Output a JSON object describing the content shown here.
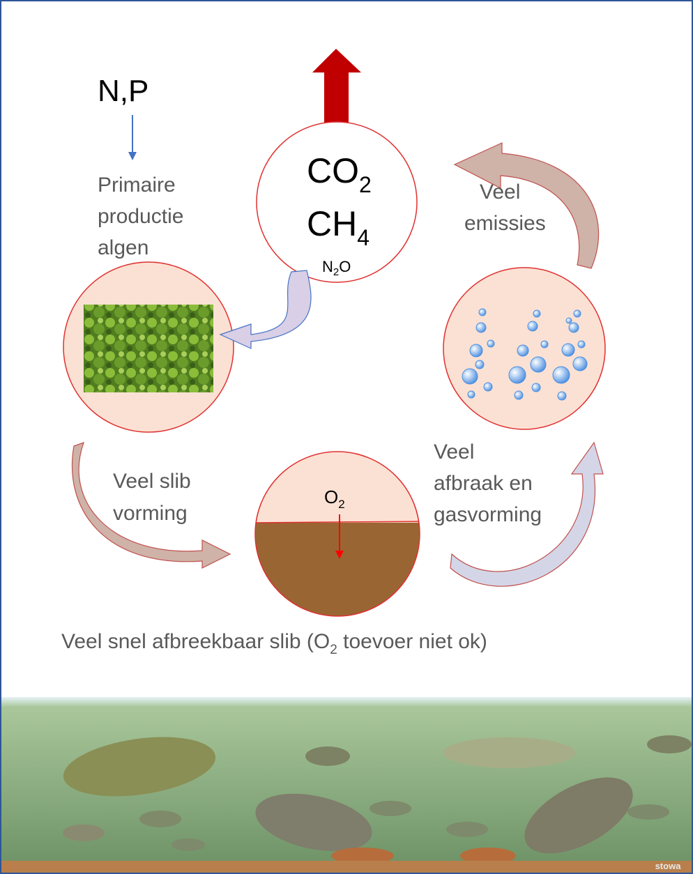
{
  "nutrients": "N,P",
  "primary": [
    "Primaire",
    "productie",
    "algen"
  ],
  "gases": {
    "co2": {
      "text": "CO",
      "sub": "2"
    },
    "ch4": {
      "text": "CH",
      "sub": "4"
    },
    "n2o": {
      "text": "N",
      "sub": "2",
      "tail": "O"
    }
  },
  "emissions": [
    "Veel",
    "emissies"
  ],
  "sludge": [
    "Veel slib",
    "vorming"
  ],
  "oxygen": {
    "text": "O",
    "sub": "2"
  },
  "decay": [
    "Veel",
    "afbraak en",
    "gasvorming"
  ],
  "caption": {
    "text": "Veel snel afbreekbaar slib (O",
    "sub": "2",
    "tail": " toevoer niet ok)"
  },
  "logo": "stowa"
}
